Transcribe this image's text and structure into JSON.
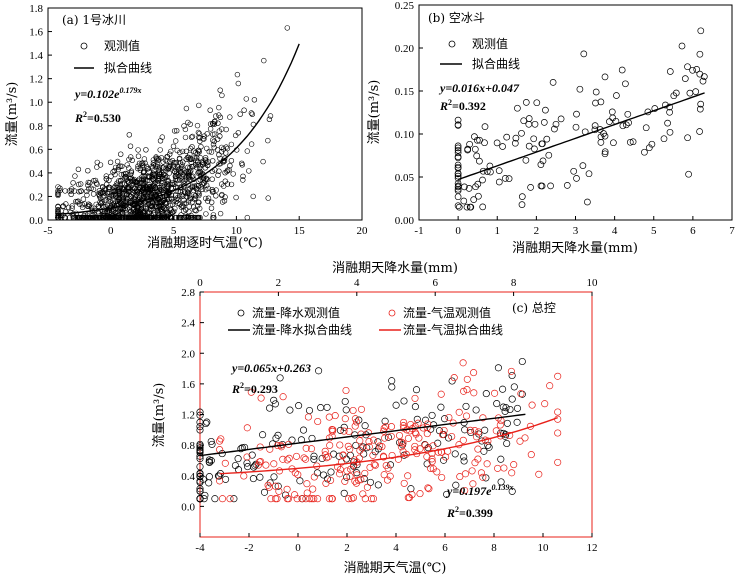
{
  "chart_data": [
    {
      "id": "a",
      "type": "scatter",
      "title": "(a) 1号冰川",
      "xlabel": "消融期逐时气温(℃)",
      "ylabel": "流量(m³/s)",
      "xlim": [
        -5,
        20
      ],
      "ylim": [
        0,
        1.8
      ],
      "xticks": [
        "-5",
        "0",
        "5",
        "10",
        "15",
        "20"
      ],
      "yticks": [
        "0.0",
        "0.2",
        "0.4",
        "0.6",
        "0.8",
        "1.0",
        "1.2",
        "1.4",
        "1.6",
        "1.8"
      ],
      "legend": [
        "观测值",
        "拟合曲线"
      ],
      "fit": {
        "type": "exp",
        "a": 0.102,
        "b": 0.179,
        "xrange": [
          -4.2,
          15
        ]
      },
      "eq_text": "y=0.102e",
      "eq_exp": "0.179x",
      "r2_text": "=0.530",
      "scatter": {
        "count": 1300,
        "xmin": -4.2,
        "xmax": 15.5,
        "center_x": 3,
        "spread_x": 3.5,
        "noise": 0.42,
        "ymin": 0.02,
        "ymax": 1.64
      }
    },
    {
      "id": "b",
      "type": "scatter",
      "title": "(b) 空冰斗",
      "xlabel": "消融期天降水量(mm)",
      "ylabel": "流量(m³/s)",
      "xlim": [
        -1,
        7
      ],
      "ylim": [
        0,
        0.25
      ],
      "xticks": [
        "-1",
        "0",
        "1",
        "2",
        "3",
        "4",
        "5",
        "6",
        "7"
      ],
      "yticks": [
        "0.00",
        "0.05",
        "0.10",
        "0.15",
        "0.20",
        "0.25"
      ],
      "legend": [
        "观测值",
        "拟合曲线"
      ],
      "fit": {
        "type": "linear",
        "a": 0.016,
        "b": 0.047,
        "xrange": [
          0,
          6.3
        ]
      },
      "eq_text": "y=0.016x+0.047",
      "r2_text": "=0.392",
      "scatter": {
        "count": 160,
        "xmin": 0,
        "xmax": 6.3,
        "noise": 0.038,
        "ymin": 0.015,
        "ymax": 0.225
      }
    },
    {
      "id": "c",
      "type": "scatter",
      "title": "(c) 总控",
      "xlabel": "消融期天气温(℃)",
      "x2label": "消融期天降水量(mm)",
      "ylabel": "流量(m³/s)",
      "xlim": [
        -4,
        12
      ],
      "x2lim": [
        0,
        10
      ],
      "ylim": [
        -0.4,
        2.8
      ],
      "xticks": [
        "-4",
        "-2",
        "0",
        "2",
        "4",
        "6",
        "8",
        "10",
        "12"
      ],
      "x2ticks": [
        "0",
        "2",
        "4",
        "6",
        "8",
        "10"
      ],
      "yticks": [
        "0.0",
        "0.4",
        "0.8",
        "1.2",
        "1.6",
        "2.0",
        "2.4",
        "2.8"
      ],
      "legend": [
        "流量-降水观测值",
        "流量-气温观测值",
        "流量-降水拟合曲线",
        "流量-气温拟合曲线"
      ],
      "series": [
        {
          "name": "流量-降水观测值",
          "color": "#000000",
          "scatter": {
            "count": 200,
            "xmin": 0,
            "xmax": 8.3,
            "noise": 0.38,
            "ymin": 0.1,
            "ymax": 2.05
          }
        },
        {
          "name": "流量-气温观测值",
          "color": "#e8211a",
          "scatter": {
            "count": 260,
            "xmin": -3.2,
            "xmax": 10.6,
            "noise": 0.36,
            "ymin": 0.1,
            "ymax": 2.42
          }
        }
      ],
      "fit_precip": {
        "type": "linear",
        "a": 0.065,
        "b": 0.263,
        "xrange": [
          0,
          8.3
        ]
      },
      "fit_temp": {
        "type": "exp",
        "a": 0.197,
        "b": 0.139,
        "xrange": [
          -3.2,
          10.6
        ],
        "note": "rendered offset to match figure"
      },
      "eq1_text": "y=0.065x+0.263",
      "r21_text": "=0.293",
      "eq2_text": "y=0.197e",
      "eq2_exp": "0.139x",
      "r22_text": "=0.399"
    }
  ]
}
